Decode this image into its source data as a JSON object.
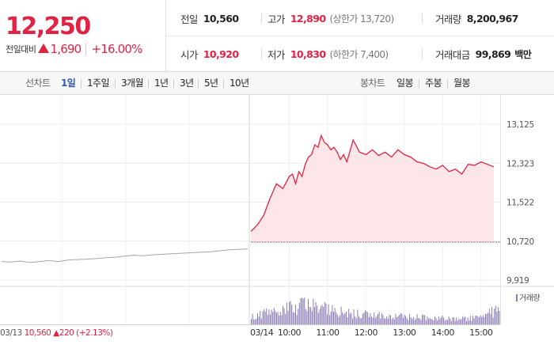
{
  "quote": {
    "price": "12,250",
    "change_label": "전일대비",
    "change_amount": "1,690",
    "change_rate": "+16.00%",
    "prev_close_label": "전일",
    "prev_close": "10,560",
    "high_label": "고가",
    "high": "12,890",
    "upper_limit_text": "(상한가 13,720)",
    "volume_label": "거래량",
    "volume": "8,200,967",
    "open_label": "시가",
    "open": "10,920",
    "low_label": "저가",
    "low": "10,830",
    "lower_limit_text": "(하한가 7,400)",
    "trade_value_label": "거래대금",
    "trade_value": "99,869",
    "trade_value_unit": "백만"
  },
  "tabs": {
    "line_title": "선차트",
    "line_items": [
      "1일",
      "1주일",
      "3개월",
      "1년",
      "3년",
      "5년",
      "10년"
    ],
    "line_active": "1일",
    "candle_title": "봉차트",
    "candle_items": [
      "일봉",
      "주봉",
      "월봉"
    ]
  },
  "colors": {
    "up": "#e12343",
    "up_fill": "#fce6e7",
    "prev_line": "#a6a6a6",
    "volume_bar": "#8c7bb8",
    "active_tab": "#2f57c8"
  },
  "chart_data": {
    "type": "line",
    "y_ticks": [
      "13,125",
      "12,323",
      "11,522",
      "10,720",
      "9,919"
    ],
    "y_tick_values": [
      13125,
      12323,
      11522,
      10720,
      9919
    ],
    "ylim": [
      9919,
      13125
    ],
    "grid": true,
    "prev_day_label": "03/13",
    "prev_day_close": "10,560",
    "prev_day_change": "220",
    "prev_day_rate": "(+2.13%)",
    "x_date_label": "03/14",
    "x_ticks": [
      "10:00",
      "11:00",
      "12:00",
      "13:00",
      "14:00",
      "15:00"
    ],
    "legend": "거래량",
    "prev_day_series": {
      "name": "03/13",
      "values": [
        10300,
        10290,
        10310,
        10280,
        10300,
        10320,
        10300,
        10330,
        10340,
        10350,
        10360,
        10380,
        10390,
        10410,
        10430,
        10420,
        10440,
        10450,
        10460,
        10470,
        10480,
        10490,
        10500,
        10520,
        10540,
        10550,
        10560
      ]
    },
    "series": [
      {
        "name": "03/14",
        "x": [
          "09:00",
          "09:10",
          "09:20",
          "09:30",
          "09:40",
          "09:50",
          "10:00",
          "10:05",
          "10:10",
          "10:15",
          "10:20",
          "10:25",
          "10:30",
          "10:35",
          "10:40",
          "10:45",
          "10:50",
          "10:55",
          "11:00",
          "11:05",
          "11:10",
          "11:15",
          "11:20",
          "11:25",
          "11:30",
          "11:40",
          "11:50",
          "12:00",
          "12:10",
          "12:20",
          "12:30",
          "12:40",
          "12:50",
          "13:00",
          "13:10",
          "13:20",
          "13:30",
          "13:40",
          "13:50",
          "14:00",
          "14:10",
          "14:20",
          "14:30",
          "14:40",
          "14:50",
          "15:00",
          "15:10",
          "15:20"
        ],
        "values": [
          10920,
          11050,
          11250,
          11600,
          11900,
          11800,
          12050,
          12100,
          11900,
          12150,
          12050,
          12300,
          12450,
          12500,
          12700,
          12650,
          12890,
          12750,
          12700,
          12600,
          12650,
          12550,
          12400,
          12500,
          12350,
          12800,
          12550,
          12500,
          12600,
          12480,
          12550,
          12450,
          12600,
          12500,
          12450,
          12350,
          12320,
          12250,
          12200,
          12280,
          12150,
          12200,
          12100,
          12300,
          12280,
          12350,
          12300,
          12250
        ]
      }
    ],
    "volume": {
      "x": [
        "09:00",
        "09:30",
        "10:00",
        "10:30",
        "11:00",
        "11:30",
        "12:00",
        "12:30",
        "13:00",
        "13:30",
        "14:00",
        "14:30",
        "15:00",
        "15:20"
      ],
      "values": [
        60,
        90,
        120,
        140,
        110,
        80,
        70,
        60,
        55,
        50,
        45,
        40,
        50,
        95
      ]
    }
  }
}
